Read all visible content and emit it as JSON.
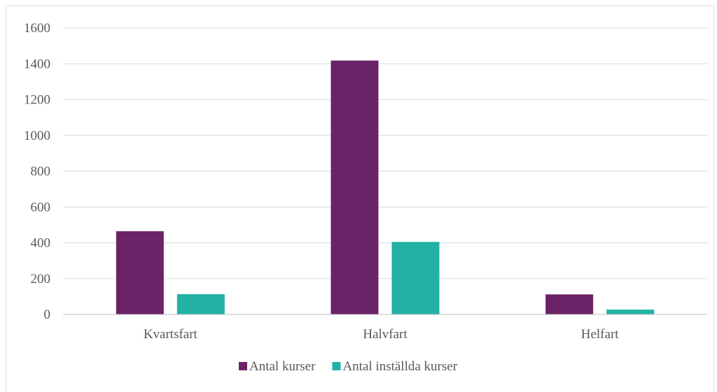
{
  "chart_data": {
    "type": "bar",
    "categories": [
      "Kvartsfart",
      "Halvfart",
      "Helfart"
    ],
    "series": [
      {
        "name": "Antal kurser",
        "values": [
          465,
          1418,
          112
        ],
        "color": "#6b2368"
      },
      {
        "name": "Antal inställda kurser",
        "values": [
          113,
          405,
          27
        ],
        "color": "#22b1a5"
      }
    ],
    "ylim": [
      0,
      1600
    ],
    "yticks": [
      0,
      200,
      400,
      600,
      800,
      1000,
      1200,
      1400,
      1600
    ],
    "grid": true,
    "legend_position": "bottom",
    "colors": {
      "gridline": "#d9d9d9",
      "axis": "#bfbfbf",
      "text": "#595959"
    }
  }
}
